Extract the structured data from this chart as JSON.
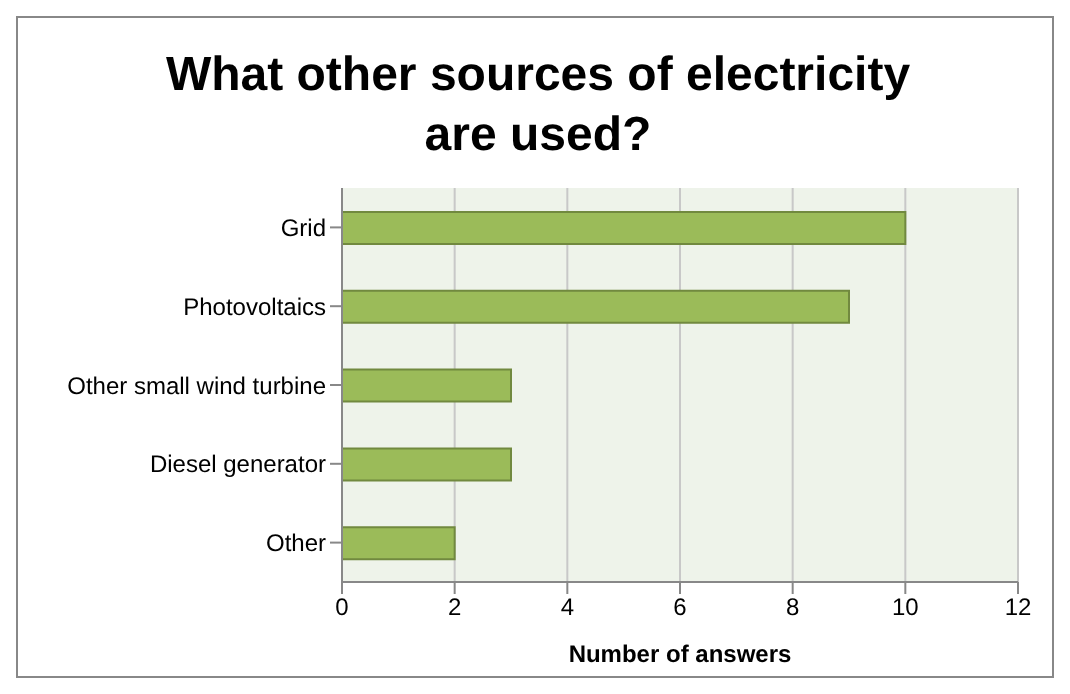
{
  "chart_data": {
    "type": "bar",
    "orientation": "horizontal",
    "title": "What other sources of electricity are used?",
    "xlabel": "Number of answers",
    "categories": [
      "Grid",
      "Photovoltaics",
      "Other small wind turbine",
      "Diesel generator",
      "Other"
    ],
    "values": [
      10,
      9,
      3,
      3,
      2
    ],
    "color": "#9bbb59",
    "xlim": [
      0,
      12
    ],
    "xticks": [
      0,
      2,
      4,
      6,
      8,
      10,
      12
    ],
    "grid": "x",
    "legend": false
  }
}
